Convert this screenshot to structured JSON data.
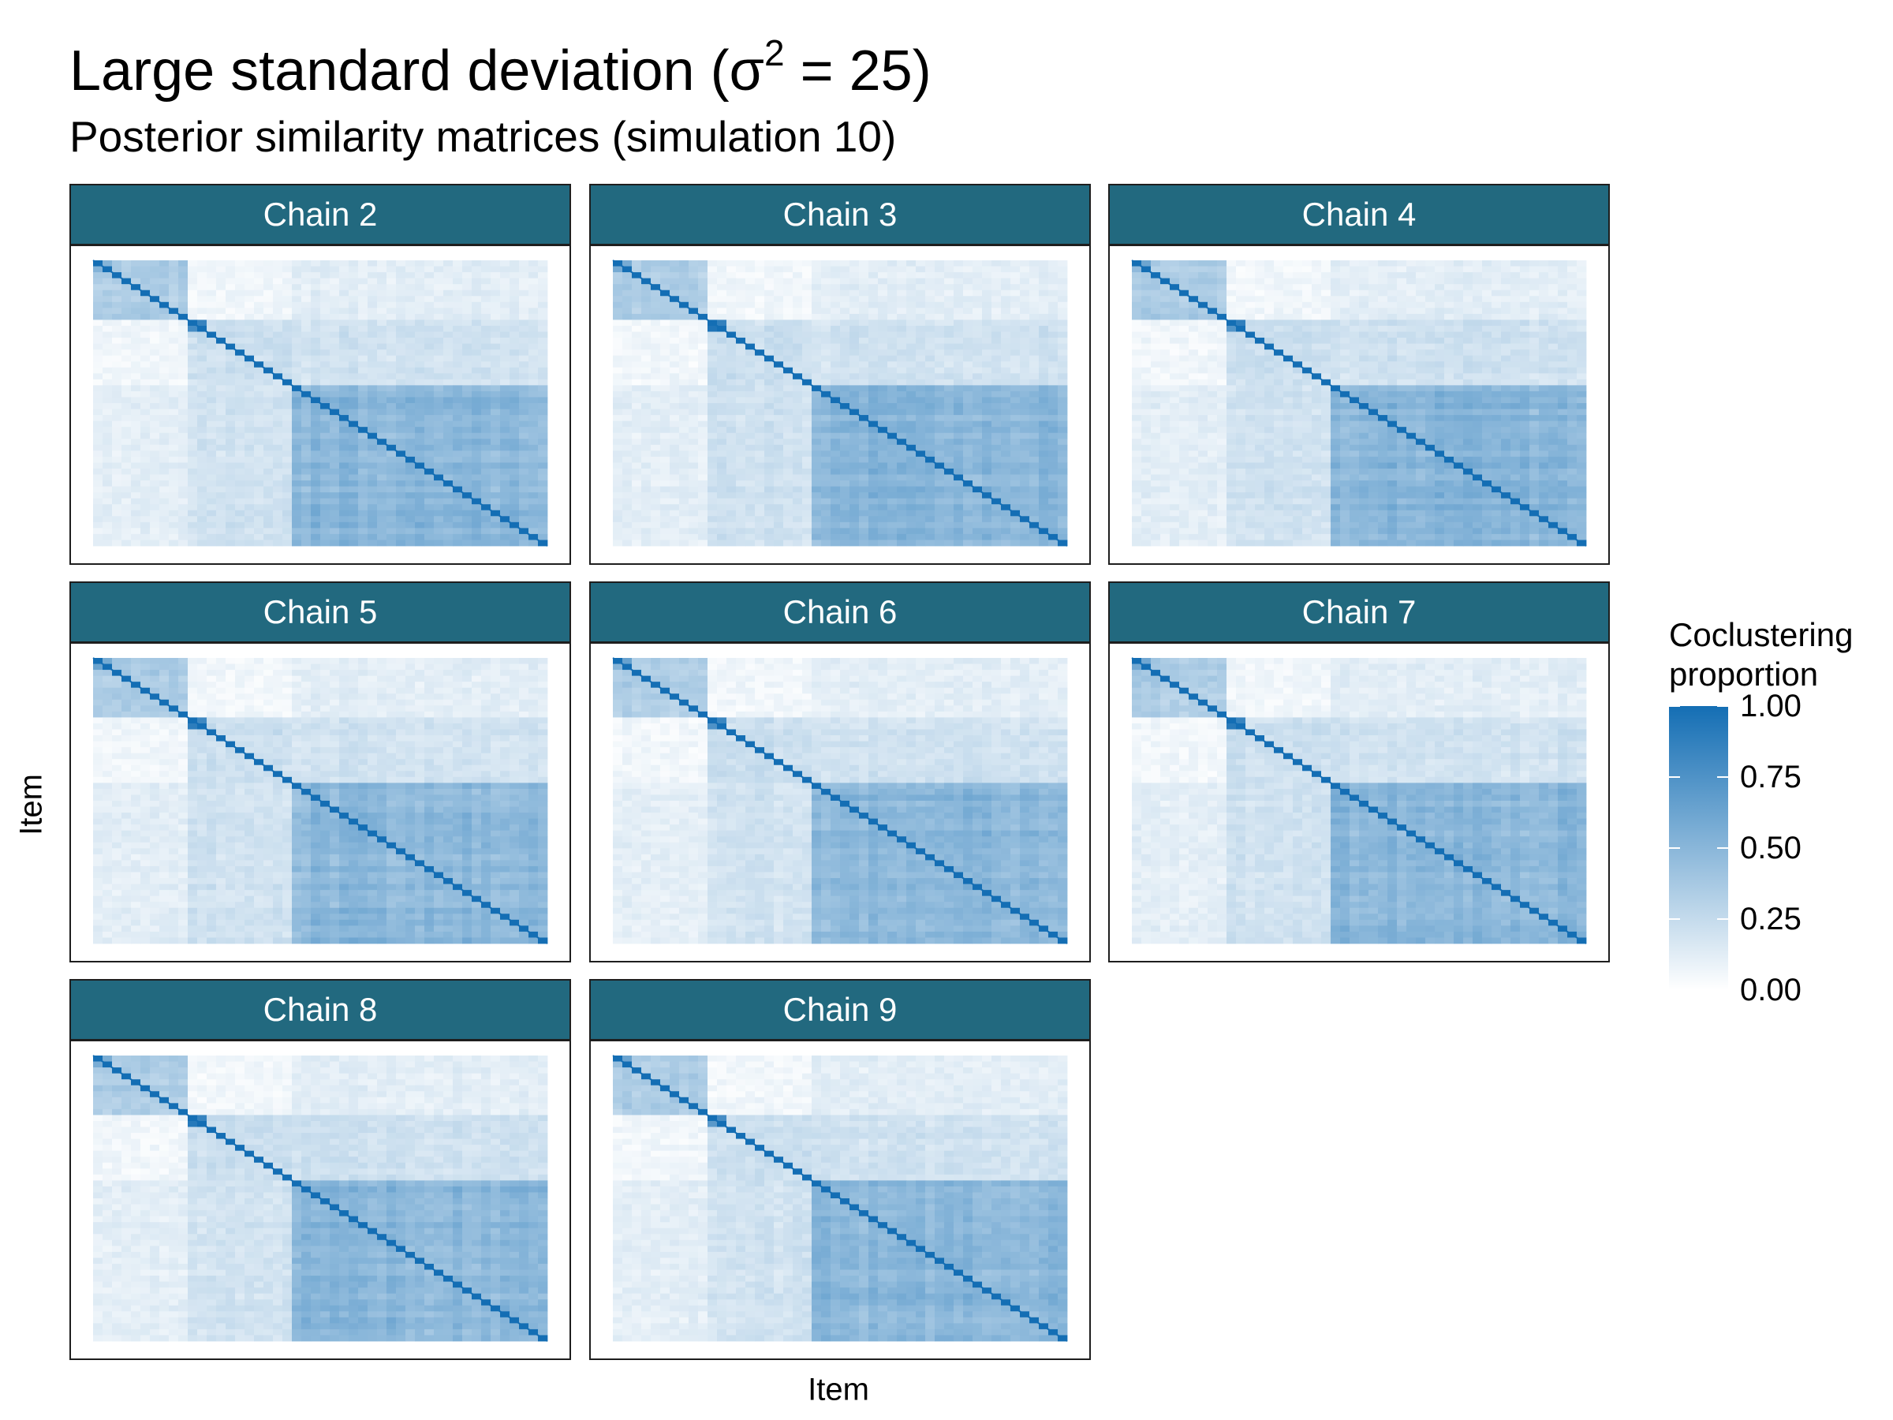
{
  "title": {
    "prefix": "Large standard deviation (",
    "sigma": "σ",
    "sup": "2",
    "suffix": " = 25)"
  },
  "subtitle": "Posterior similarity matrices (simulation 10)",
  "chart_data": {
    "type": "heatmap",
    "xlabel": "Item",
    "ylabel": "Item",
    "facets": [
      "Chain 2",
      "Chain 3",
      "Chain 4",
      "Chain 5",
      "Chain 6",
      "Chain 7",
      "Chain 8",
      "Chain 9"
    ],
    "legend": {
      "title_line1": "Coclustering",
      "title_line2": "proportion",
      "ticks": [
        "1.00",
        "0.75",
        "0.50",
        "0.25",
        "0.00"
      ],
      "tick_values": [
        1.0,
        0.75,
        0.5,
        0.25,
        0.0
      ],
      "low_color": "#ffffff",
      "high_color": "#146eb4"
    },
    "blocks": [
      {
        "start": 0.0,
        "end": 0.215,
        "within": 0.35
      },
      {
        "start": 0.215,
        "end": 0.435,
        "within": 0.22
      },
      {
        "start": 0.435,
        "end": 1.0,
        "within": 0.5
      }
    ],
    "sub_blocks": [
      {
        "start": 0.215,
        "end": 0.26,
        "within": 0.85
      },
      {
        "start": 0.0,
        "end": 0.05,
        "within": 0.55
      }
    ],
    "between": [
      {
        "a": 0,
        "b": 2,
        "value": 0.12
      },
      {
        "a": 1,
        "b": 2,
        "value": 0.2
      },
      {
        "a": 0,
        "b": 1,
        "value": 0.06
      }
    ],
    "diagonal": 1.0,
    "grid": false
  }
}
